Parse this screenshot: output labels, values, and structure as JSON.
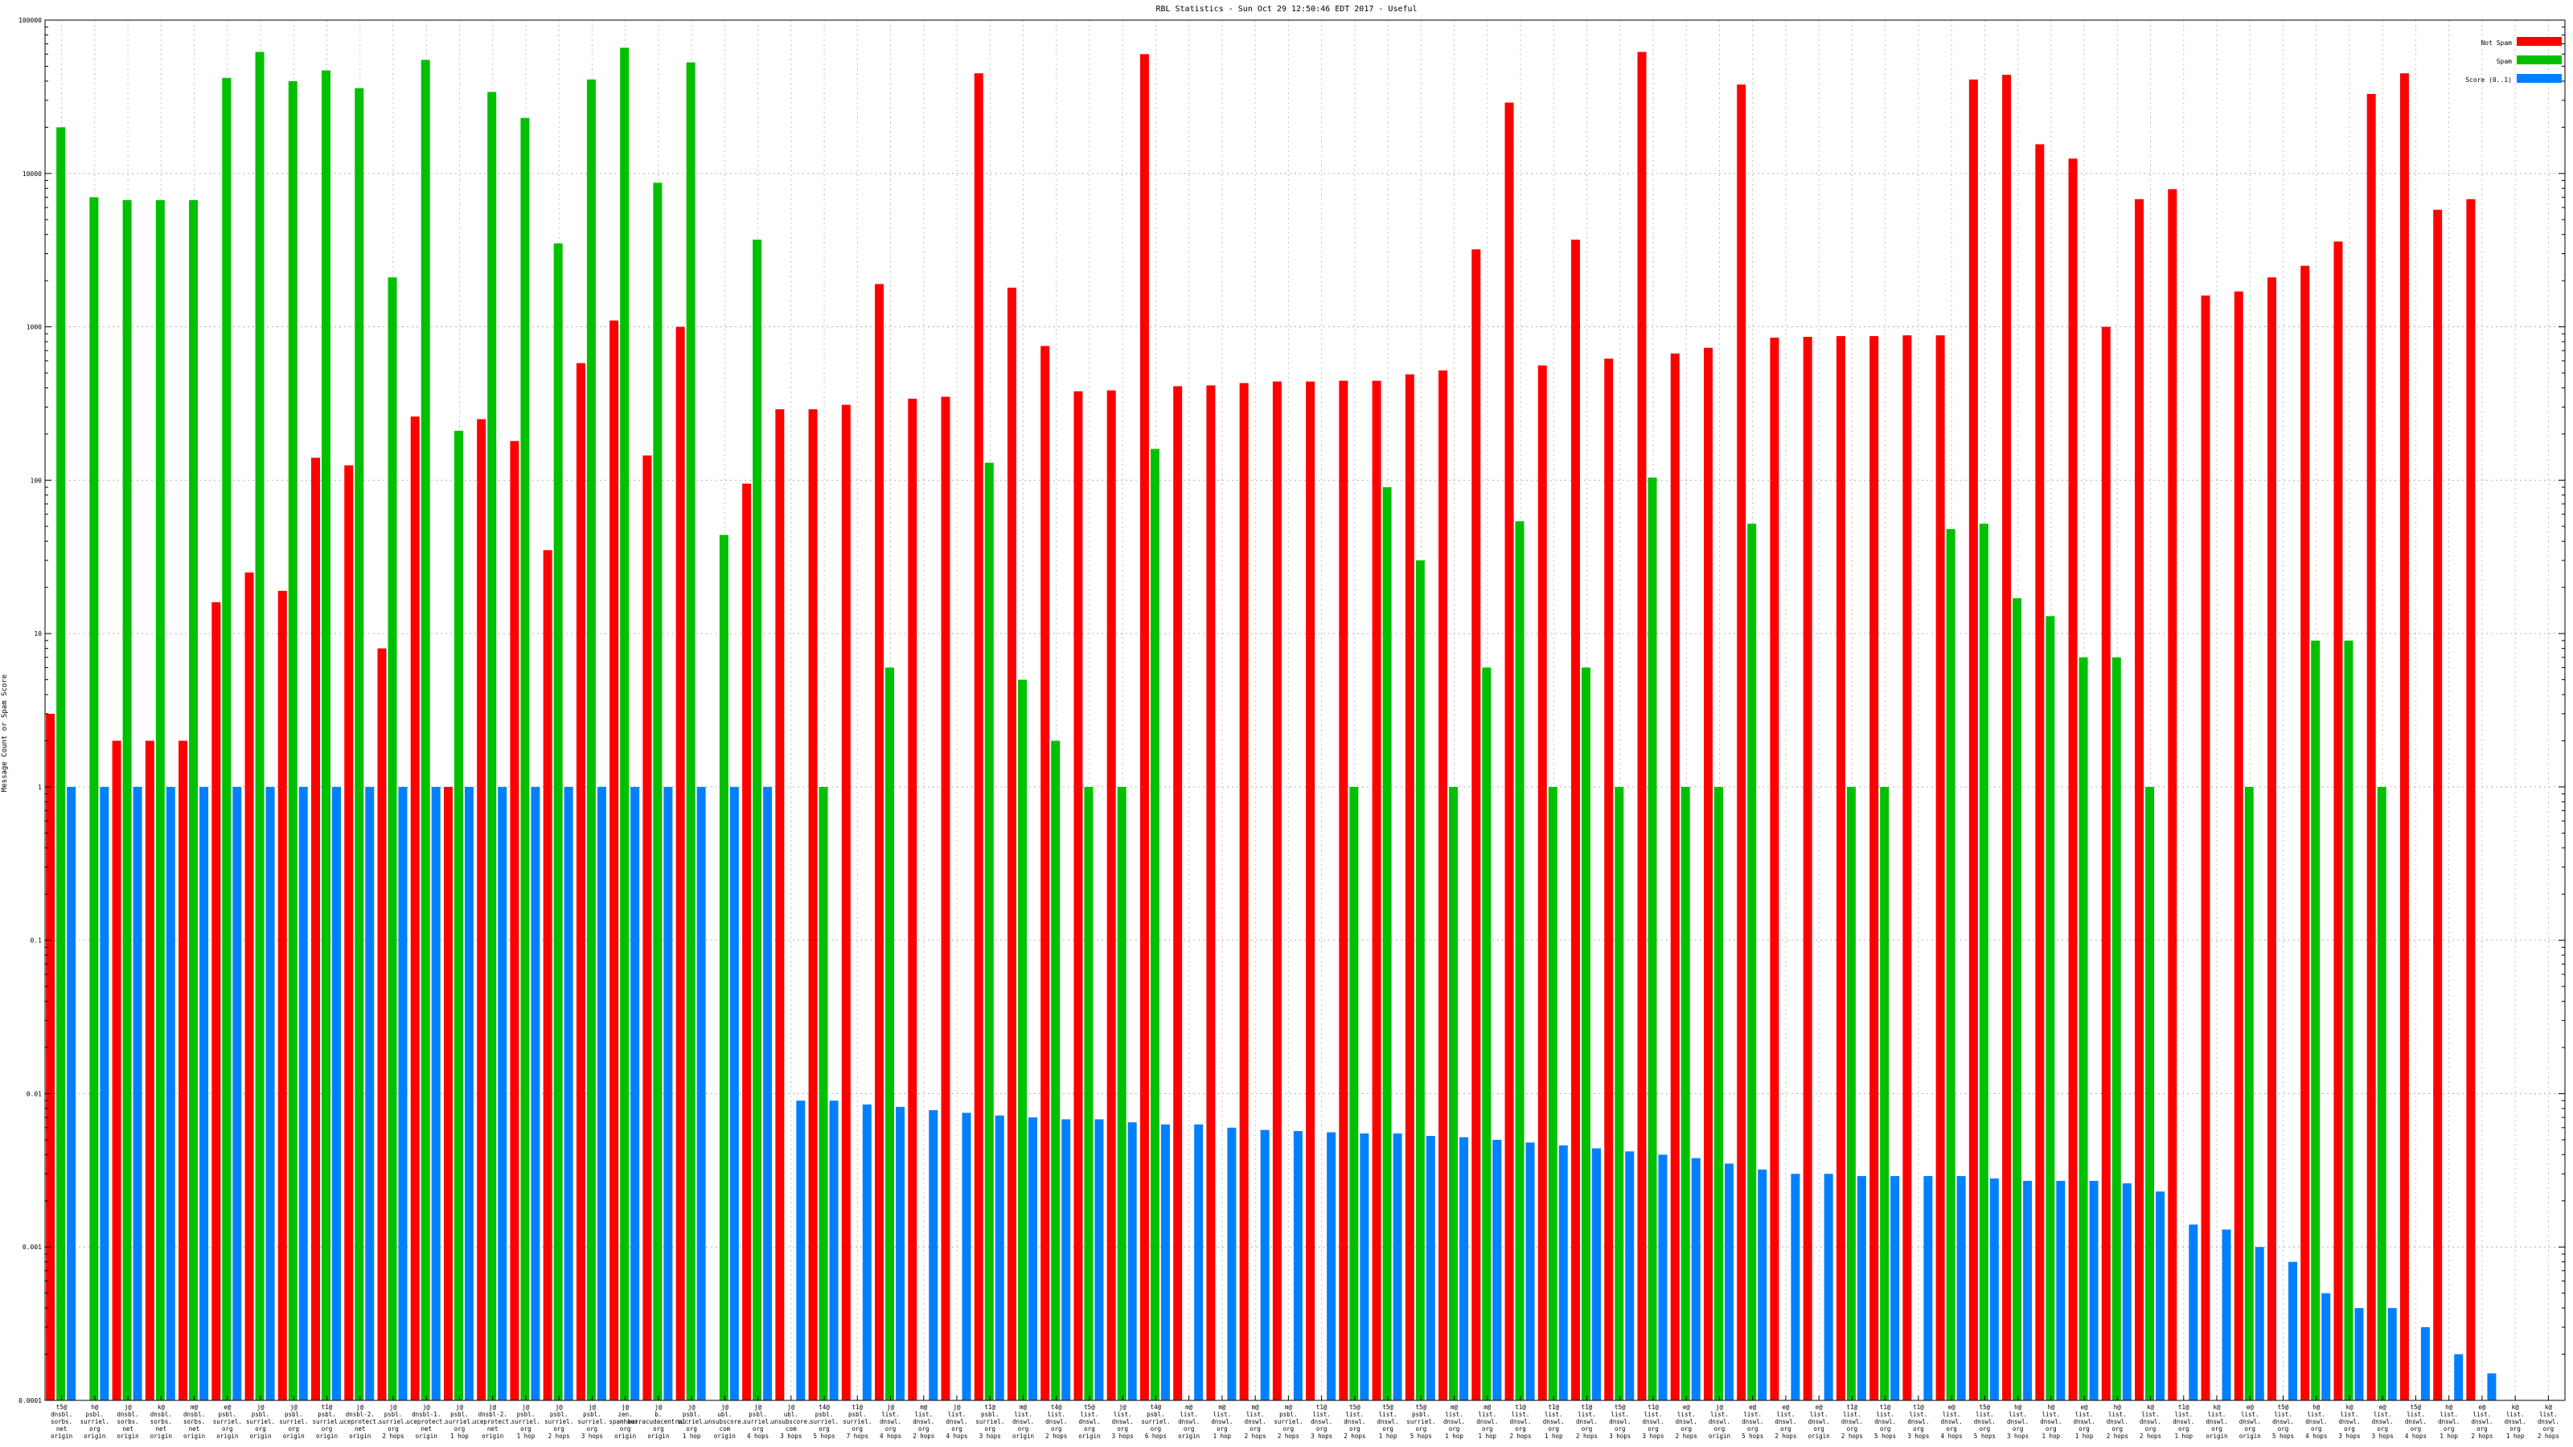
{
  "chart_data": {
    "type": "bar",
    "title": "RBL Statistics - Sun Oct 29 12:50:46 EDT 2017 - Useful",
    "xlabel": "",
    "ylabel": "Message Count or Spam Score",
    "yscale": "log",
    "ylim": [
      0.0001,
      100000
    ],
    "ytick_labels": [
      "0.0001",
      "0.001",
      "0.01",
      "0.1",
      "1",
      "10",
      "100",
      "1000",
      "10000",
      "100000"
    ],
    "grid": true,
    "legend_position": "top-right",
    "categories": [
      [
        "t5@",
        "dnsbl.",
        "sorbs.",
        "net",
        "origin"
      ],
      [
        "h@",
        "psbl.",
        "surriel.",
        "org",
        "origin"
      ],
      [
        "j@",
        "dnsbl.",
        "sorbs.",
        "net",
        "origin"
      ],
      [
        "k@",
        "dnsbl.",
        "sorbs.",
        "net",
        "origin"
      ],
      [
        "m@",
        "dnsbl.",
        "sorbs.",
        "net",
        "origin"
      ],
      [
        "e@",
        "psbl.",
        "surriel.",
        "org",
        "origin"
      ],
      [
        "j@",
        "psbl.",
        "surriel.",
        "org",
        "origin"
      ],
      [
        "j@",
        "psbl.",
        "surriel.",
        "org",
        "origin"
      ],
      [
        "t1@",
        "psbl.",
        "surriel.",
        "org",
        "origin"
      ],
      [
        "j@",
        "dnsbl-2.",
        "uceprotect.",
        "net",
        "origin"
      ],
      [
        "j@",
        "psbl.",
        "surriel.",
        "org",
        "2 hops"
      ],
      [
        "j@",
        "dnsbl-1.",
        "uceprotect.",
        "net",
        "origin"
      ],
      [
        "j@",
        "psbl.",
        "surriel.",
        "org",
        "1 hop"
      ],
      [
        "j@",
        "dnsbl-2.",
        "uceprotect.",
        "net",
        "origin"
      ],
      [
        "j@",
        "psbl.",
        "surriel.",
        "org",
        "1 hop"
      ],
      [
        "j@",
        "psbl.",
        "surriel.",
        "org",
        "2 hops"
      ],
      [
        "j@",
        "psbl.",
        "surriel.",
        "org",
        "3 hops"
      ],
      [
        "j@",
        "zen.",
        "spamhaus.",
        "org",
        "origin"
      ],
      [
        "j@",
        "b.",
        "barracudacentral.",
        "org",
        "origin"
      ],
      [
        "j@",
        "psbl.",
        "surriel.",
        "org",
        "1 hop"
      ],
      [
        "j@",
        "ubl.",
        "unsubscore.",
        "com",
        "origin"
      ],
      [
        "j@",
        "psbl.",
        "surriel.",
        "org",
        "4 hops"
      ],
      [
        "j@",
        "ubl.",
        "unsubscore.",
        "com",
        "3 hops"
      ],
      [
        "t4@",
        "psbl.",
        "surriel.",
        "org",
        "5 hops"
      ],
      [
        "t1@",
        "psbl.",
        "surriel.",
        "org",
        "7 hops"
      ],
      [
        "j@",
        "list.",
        "dnswl.",
        "org",
        "4 hops"
      ],
      [
        "m@",
        "list.",
        "dnswl.",
        "org",
        "2 hops"
      ],
      [
        "j@",
        "list.",
        "dnswl.",
        "org",
        "4 hops"
      ],
      [
        "t1@",
        "psbl.",
        "surriel.",
        "org",
        "3 hops"
      ],
      [
        "m@",
        "list.",
        "dnswl.",
        "org",
        "origin"
      ],
      [
        "t4@",
        "list.",
        "dnswl.",
        "org",
        "2 hops"
      ],
      [
        "t5@",
        "list.",
        "dnswl.",
        "org",
        "origin"
      ],
      [
        "j@",
        "list.",
        "dnswl.",
        "org",
        "3 hops"
      ],
      [
        "t4@",
        "psbl.",
        "surriel.",
        "org",
        "6 hops"
      ],
      [
        "m@",
        "list.",
        "dnswl.",
        "org",
        "origin"
      ],
      [
        "m@",
        "list.",
        "dnswl.",
        "org",
        "1 hop"
      ],
      [
        "m@",
        "list.",
        "dnswl.",
        "org",
        "2 hops"
      ],
      [
        "m@",
        "psbl.",
        "surriel.",
        "org",
        "2 hops"
      ],
      [
        "t1@",
        "list.",
        "dnswl.",
        "org",
        "3 hops"
      ],
      [
        "t5@",
        "list.",
        "dnswl.",
        "org",
        "2 hops"
      ],
      [
        "t5@",
        "list.",
        "dnswl.",
        "org",
        "1 hop"
      ],
      [
        "t5@",
        "psbl.",
        "surriel.",
        "org",
        "5 hops"
      ],
      [
        "m@",
        "list.",
        "dnswl.",
        "org",
        "1 hop"
      ],
      [
        "m@",
        "list.",
        "dnswl.",
        "org",
        "1 hop"
      ],
      [
        "t1@",
        "list.",
        "dnswl.",
        "org",
        "2 hops"
      ],
      [
        "t1@",
        "list.",
        "dnswl.",
        "org",
        "1 hop"
      ],
      [
        "t1@",
        "list.",
        "dnswl.",
        "org",
        "2 hops"
      ],
      [
        "t5@",
        "list.",
        "dnswl.",
        "org",
        "3 hops"
      ],
      [
        "t1@",
        "list.",
        "dnswl.",
        "org",
        "3 hops"
      ],
      [
        "e@",
        "list.",
        "dnswl.",
        "org",
        "2 hops"
      ],
      [
        "j@",
        "list.",
        "dnswl.",
        "org",
        "origin"
      ],
      [
        "e@",
        "list.",
        "dnswl.",
        "org",
        "5 hops"
      ],
      [
        "e@",
        "list.",
        "dnswl.",
        "org",
        "2 hops"
      ],
      [
        "e@",
        "list.",
        "dnswl.",
        "org",
        "origin"
      ],
      [
        "t1@",
        "list.",
        "dnswl.",
        "org",
        "2 hops"
      ],
      [
        "t1@",
        "list.",
        "dnswl.",
        "org",
        "5 hops"
      ],
      [
        "t1@",
        "list.",
        "dnswl.",
        "org",
        "3 hops"
      ],
      [
        "e@",
        "list.",
        "dnswl.",
        "org",
        "4 hops"
      ],
      [
        "t5@",
        "list.",
        "dnswl.",
        "org",
        "5 hops"
      ],
      [
        "h@",
        "list.",
        "dnswl.",
        "org",
        "3 hops"
      ],
      [
        "h@",
        "list.",
        "dnswl.",
        "org",
        "1 hop"
      ],
      [
        "e@",
        "list.",
        "dnswl.",
        "org",
        "1 hop"
      ],
      [
        "h@",
        "list.",
        "dnswl.",
        "org",
        "2 hops"
      ],
      [
        "k@",
        "list.",
        "dnswl.",
        "org",
        "2 hops"
      ],
      [
        "t1@",
        "list.",
        "dnswl.",
        "org",
        "1 hop"
      ],
      [
        "k@",
        "list.",
        "dnswl.",
        "org",
        "origin"
      ],
      [
        "e@",
        "list.",
        "dnswl.",
        "org",
        "origin"
      ],
      [
        "t5@",
        "list.",
        "dnswl.",
        "org",
        "5 hops"
      ],
      [
        "h@",
        "list.",
        "dnswl.",
        "org",
        "4 hops"
      ],
      [
        "k@",
        "list.",
        "dnswl.",
        "org",
        "3 hops"
      ],
      [
        "e@",
        "list.",
        "dnswl.",
        "org",
        "3 hops"
      ],
      [
        "t5@",
        "list.",
        "dnswl.",
        "org",
        "4 hops"
      ],
      [
        "h@",
        "list.",
        "dnswl.",
        "org",
        "1 hop"
      ],
      [
        "e@",
        "list.",
        "dnswl.",
        "org",
        "2 hops"
      ],
      [
        "k@",
        "list.",
        "dnswl.",
        "org",
        "1 hop"
      ],
      [
        "k@",
        "list.",
        "dnswl.",
        "org",
        "2 hops"
      ]
    ],
    "series": [
      {
        "name": "Not Spam",
        "color": "#ff0000",
        "values": [
          3,
          0.0001,
          2,
          2,
          2,
          16,
          25,
          19,
          140,
          125,
          8,
          260,
          1,
          250,
          180,
          35,
          580,
          1100,
          145,
          1000,
          0.0001,
          95,
          290,
          290,
          310,
          1900,
          340,
          350,
          45000,
          1800,
          750,
          380,
          385,
          60000,
          410,
          415,
          430,
          440,
          440,
          445,
          445,
          490,
          520,
          3200,
          29000,
          560,
          3700,
          620,
          62000,
          670,
          730,
          38000,
          850,
          860,
          870,
          870,
          880,
          880,
          41000,
          44000,
          15500,
          12500,
          1000,
          6800,
          7900,
          1600,
          1700,
          2100,
          2500,
          3600,
          33000,
          45000,
          5800,
          6800,
          0.0001,
          0.0001
        ]
      },
      {
        "name": "Spam",
        "color": "#00c000",
        "values": [
          20000,
          7000,
          6700,
          6700,
          6700,
          42000,
          62000,
          40000,
          47000,
          36000,
          2100,
          55000,
          210,
          34000,
          23000,
          3500,
          41000,
          66000,
          8700,
          53000,
          44,
          3700,
          0.0001,
          1,
          0.0001,
          6,
          0.0001,
          0.0001,
          130,
          5,
          2,
          1,
          1,
          160,
          0.0001,
          0.0001,
          0.0001,
          0.0001,
          0.0001,
          1,
          90,
          30,
          1,
          6,
          54,
          1,
          6,
          1,
          104,
          1,
          1,
          52,
          0.0001,
          0.0001,
          1,
          1,
          0.0001,
          48,
          52,
          17,
          13,
          7,
          7,
          1,
          0.0001,
          0.0001,
          1,
          0.0001,
          9,
          9,
          1,
          0.0001,
          0.0001,
          0.0001,
          0.0001,
          0.0001
        ]
      },
      {
        "name": "Score (0..1)",
        "color": "#0080ff",
        "values": [
          1,
          1,
          1,
          1,
          1,
          1,
          1,
          1,
          1,
          1,
          1,
          1,
          1,
          1,
          1,
          1,
          1,
          1,
          1,
          1,
          1,
          1,
          0.009,
          0.009,
          0.0085,
          0.0082,
          0.0078,
          0.0075,
          0.0072,
          0.007,
          0.0068,
          0.0068,
          0.0065,
          0.0063,
          0.0063,
          0.006,
          0.0058,
          0.0057,
          0.0056,
          0.0055,
          0.0055,
          0.0053,
          0.0052,
          0.005,
          0.0048,
          0.0046,
          0.0044,
          0.0042,
          0.004,
          0.0038,
          0.0035,
          0.0032,
          0.003,
          0.003,
          0.0029,
          0.0029,
          0.0029,
          0.0029,
          0.0028,
          0.0027,
          0.0027,
          0.0027,
          0.0026,
          0.0023,
          0.0014,
          0.0013,
          0.001,
          0.0008,
          0.0005,
          0.0004,
          0.0004,
          0.0003,
          0.0002,
          0.00015,
          0.0001,
          0.0001
        ]
      }
    ]
  }
}
